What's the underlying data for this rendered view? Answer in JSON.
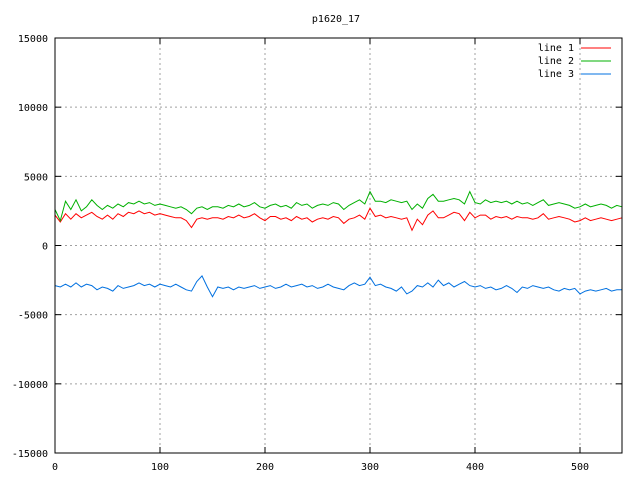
{
  "chart_data": {
    "type": "line",
    "title": "p1620_17",
    "xlabel": "",
    "ylabel": "",
    "xlim": [
      0,
      540
    ],
    "ylim": [
      -15000,
      15000
    ],
    "xticks": [
      0,
      100,
      200,
      300,
      400,
      500
    ],
    "yticks": [
      -15000,
      -10000,
      -5000,
      0,
      5000,
      10000,
      15000
    ],
    "grid": true,
    "legend_position": "top-right",
    "n_points": 541,
    "series": [
      {
        "name": "line 1",
        "color": "#ff0000",
        "x": [
          0,
          5,
          10,
          15,
          20,
          25,
          30,
          35,
          40,
          45,
          50,
          55,
          60,
          65,
          70,
          75,
          80,
          85,
          90,
          95,
          100,
          105,
          110,
          115,
          120,
          125,
          130,
          135,
          140,
          145,
          150,
          155,
          160,
          165,
          170,
          175,
          180,
          185,
          190,
          195,
          200,
          205,
          210,
          215,
          220,
          225,
          230,
          235,
          240,
          245,
          250,
          255,
          260,
          265,
          270,
          275,
          280,
          285,
          290,
          295,
          300,
          305,
          310,
          315,
          320,
          325,
          330,
          335,
          340,
          345,
          350,
          355,
          360,
          365,
          370,
          375,
          380,
          385,
          390,
          395,
          400,
          405,
          410,
          415,
          420,
          425,
          430,
          435,
          440,
          445,
          450,
          455,
          460,
          465,
          470,
          475,
          480,
          485,
          490,
          495,
          500,
          505,
          510,
          515,
          520,
          525,
          530,
          535,
          540
        ],
        "values": [
          2200,
          1700,
          2300,
          1900,
          2300,
          2000,
          2200,
          2400,
          2100,
          1900,
          2200,
          1900,
          2300,
          2100,
          2400,
          2300,
          2500,
          2300,
          2400,
          2200,
          2300,
          2200,
          2100,
          2000,
          2000,
          1800,
          1300,
          1900,
          2000,
          1900,
          2000,
          2000,
          1900,
          2100,
          2000,
          2200,
          2000,
          2100,
          2300,
          2000,
          1800,
          2100,
          2100,
          1900,
          2000,
          1800,
          2100,
          1900,
          2000,
          1700,
          1900,
          2000,
          1900,
          2100,
          2000,
          1600,
          1900,
          2000,
          2200,
          1900,
          2700,
          2100,
          2200,
          2000,
          2100,
          2000,
          1900,
          2000,
          1100,
          1900,
          1500,
          2200,
          2500,
          2000,
          2000,
          2200,
          2400,
          2300,
          1800,
          2400,
          2000,
          2200,
          2200,
          1900,
          2100,
          2000,
          2100,
          1900,
          2100,
          2000,
          2000,
          1900,
          2000,
          2300,
          1900,
          2000,
          2100,
          2000,
          1900,
          1700,
          1800,
          2000,
          1800,
          1900,
          2000,
          1900,
          1800,
          1900,
          2000
        ]
      },
      {
        "name": "line 2",
        "color": "#00b000",
        "x": [
          0,
          5,
          10,
          15,
          20,
          25,
          30,
          35,
          40,
          45,
          50,
          55,
          60,
          65,
          70,
          75,
          80,
          85,
          90,
          95,
          100,
          105,
          110,
          115,
          120,
          125,
          130,
          135,
          140,
          145,
          150,
          155,
          160,
          165,
          170,
          175,
          180,
          185,
          190,
          195,
          200,
          205,
          210,
          215,
          220,
          225,
          230,
          235,
          240,
          245,
          250,
          255,
          260,
          265,
          270,
          275,
          280,
          285,
          290,
          295,
          300,
          305,
          310,
          315,
          320,
          325,
          330,
          335,
          340,
          345,
          350,
          355,
          360,
          365,
          370,
          375,
          380,
          385,
          390,
          395,
          400,
          405,
          410,
          415,
          420,
          425,
          430,
          435,
          440,
          445,
          450,
          455,
          460,
          465,
          470,
          475,
          480,
          485,
          490,
          495,
          500,
          505,
          510,
          515,
          520,
          525,
          530,
          535,
          540
        ],
        "values": [
          2600,
          1800,
          3200,
          2600,
          3300,
          2500,
          2800,
          3300,
          2900,
          2600,
          2900,
          2700,
          3000,
          2800,
          3100,
          3000,
          3200,
          3000,
          3100,
          2900,
          3000,
          2900,
          2800,
          2700,
          2800,
          2600,
          2300,
          2700,
          2800,
          2600,
          2800,
          2800,
          2700,
          2900,
          2800,
          3000,
          2800,
          2900,
          3100,
          2800,
          2700,
          2900,
          3000,
          2800,
          2900,
          2700,
          3100,
          2900,
          3000,
          2700,
          2900,
          3000,
          2900,
          3100,
          3000,
          2600,
          2900,
          3100,
          3300,
          3000,
          3900,
          3200,
          3200,
          3100,
          3300,
          3200,
          3100,
          3200,
          2600,
          3000,
          2700,
          3400,
          3700,
          3200,
          3200,
          3300,
          3400,
          3300,
          3000,
          3900,
          3100,
          3000,
          3300,
          3100,
          3200,
          3100,
          3200,
          3000,
          3200,
          3000,
          3100,
          2900,
          3100,
          3300,
          2900,
          3000,
          3100,
          3000,
          2900,
          2700,
          2800,
          3000,
          2800,
          2900,
          3000,
          2900,
          2700,
          2900,
          2800
        ]
      },
      {
        "name": "line 3",
        "color": "#0070e0",
        "x": [
          0,
          5,
          10,
          15,
          20,
          25,
          30,
          35,
          40,
          45,
          50,
          55,
          60,
          65,
          70,
          75,
          80,
          85,
          90,
          95,
          100,
          105,
          110,
          115,
          120,
          125,
          130,
          135,
          140,
          145,
          150,
          155,
          160,
          165,
          170,
          175,
          180,
          185,
          190,
          195,
          200,
          205,
          210,
          215,
          220,
          225,
          230,
          235,
          240,
          245,
          250,
          255,
          260,
          265,
          270,
          275,
          280,
          285,
          290,
          295,
          300,
          305,
          310,
          315,
          320,
          325,
          330,
          335,
          340,
          345,
          350,
          355,
          360,
          365,
          370,
          375,
          380,
          385,
          390,
          395,
          400,
          405,
          410,
          415,
          420,
          425,
          430,
          435,
          440,
          445,
          450,
          455,
          460,
          465,
          470,
          475,
          480,
          485,
          490,
          495,
          500,
          505,
          510,
          515,
          520,
          525,
          530,
          535,
          540
        ],
        "values": [
          -2900,
          -3000,
          -2800,
          -3000,
          -2700,
          -3000,
          -2800,
          -2900,
          -3200,
          -3000,
          -3100,
          -3300,
          -2900,
          -3100,
          -3000,
          -2900,
          -2700,
          -2900,
          -2800,
          -3000,
          -2800,
          -2900,
          -3000,
          -2800,
          -3000,
          -3200,
          -3300,
          -2600,
          -2200,
          -3000,
          -3700,
          -3000,
          -3100,
          -3000,
          -3200,
          -3000,
          -3100,
          -3000,
          -2900,
          -3100,
          -3000,
          -2900,
          -3100,
          -3000,
          -2800,
          -3000,
          -2900,
          -2800,
          -3000,
          -2900,
          -3100,
          -3000,
          -2800,
          -3000,
          -3100,
          -3200,
          -2900,
          -2700,
          -2900,
          -2800,
          -2300,
          -2900,
          -2800,
          -3000,
          -3100,
          -3300,
          -3000,
          -3500,
          -3300,
          -2900,
          -3000,
          -2700,
          -3000,
          -2500,
          -2900,
          -2700,
          -3000,
          -2800,
          -2600,
          -2900,
          -3000,
          -2900,
          -3100,
          -3000,
          -3200,
          -3100,
          -2900,
          -3100,
          -3400,
          -3000,
          -3100,
          -2900,
          -3000,
          -3100,
          -3000,
          -3200,
          -3300,
          -3100,
          -3200,
          -3100,
          -3500,
          -3300,
          -3200,
          -3300,
          -3200,
          -3100,
          -3300,
          -3200,
          -3200
        ]
      }
    ]
  }
}
